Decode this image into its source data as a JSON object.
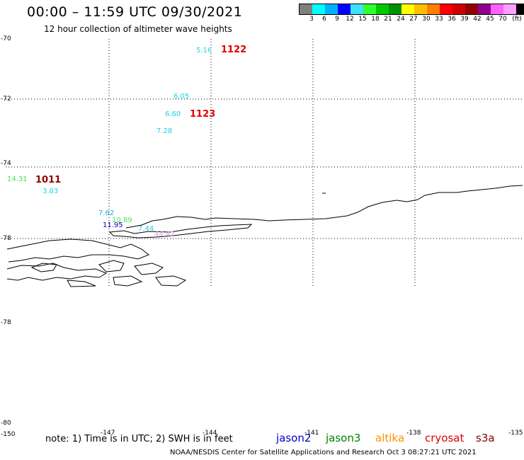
{
  "header": {
    "title": "00:00 – 11:59 UTC 09/30/2021",
    "subtitle": "12 hour collection of altimeter wave heights"
  },
  "legend": {
    "colors": [
      "#808080",
      "#00ffff",
      "#00b0ff",
      "#0000ff",
      "#40e0ff",
      "#30ff30",
      "#00c800",
      "#009000",
      "#ffff00",
      "#ffc000",
      "#ff8000",
      "#ff0000",
      "#d00000",
      "#900000",
      "#900090",
      "#ff60ff",
      "#ffa0ff",
      "#000000"
    ],
    "labels": [
      "3",
      "6",
      "9",
      "12",
      "15",
      "18",
      "21",
      "24",
      "27",
      "30",
      "33",
      "36",
      "39",
      "42",
      "45",
      "70",
      "(ft)"
    ]
  },
  "axes": {
    "y_labels": [
      "-70",
      "-72",
      "-74",
      "-78",
      "-78",
      "-80"
    ],
    "x_labels": [
      "-150",
      "-147",
      "-144",
      "-141",
      "-138",
      "-135"
    ]
  },
  "observations": [
    {
      "text": "5.16",
      "color": "#20d0e0"
    },
    {
      "text": "1122",
      "color": "#e00000"
    },
    {
      "text": "6.05",
      "color": "#20d0e0"
    },
    {
      "text": "6.60",
      "color": "#20d0e0"
    },
    {
      "text": "1123",
      "color": "#e00000"
    },
    {
      "text": "7.28",
      "color": "#20d0e0"
    },
    {
      "text": "14.31",
      "color": "#50e050"
    },
    {
      "text": "1011",
      "color": "#900000"
    },
    {
      "text": "3.03",
      "color": "#20d0e0"
    },
    {
      "text": "7.62",
      "color": "#20b0e0"
    },
    {
      "text": "10.89",
      "color": "#50e050"
    },
    {
      "text": "11.95",
      "color": "#0000c0"
    },
    {
      "text": "7.44",
      "color": "#20d0e0"
    },
    {
      "text": "44.42",
      "color": "#e0a0e0"
    }
  ],
  "note": "note: 1) Time is in UTC; 2) SWH is in feet",
  "satellites": [
    {
      "name": "jason2",
      "color": "#0000c8"
    },
    {
      "name": "jason3",
      "color": "#008000"
    },
    {
      "name": "altika",
      "color": "#ff9000"
    },
    {
      "name": "cryosat",
      "color": "#e00000"
    },
    {
      "name": "s3a",
      "color": "#800000"
    }
  ],
  "footer": "NOAA/NESDIS Center for Satellite Applications and Research    Oct  3 08:27:21 UTC 2021"
}
